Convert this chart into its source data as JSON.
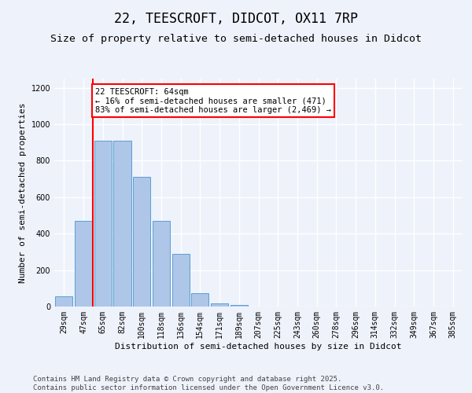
{
  "title": "22, TEESCROFT, DIDCOT, OX11 7RP",
  "subtitle": "Size of property relative to semi-detached houses in Didcot",
  "xlabel": "Distribution of semi-detached houses by size in Didcot",
  "ylabel": "Number of semi-detached properties",
  "bin_labels": [
    "29sqm",
    "47sqm",
    "65sqm",
    "82sqm",
    "100sqm",
    "118sqm",
    "136sqm",
    "154sqm",
    "171sqm",
    "189sqm",
    "207sqm",
    "225sqm",
    "243sqm",
    "260sqm",
    "278sqm",
    "296sqm",
    "314sqm",
    "332sqm",
    "349sqm",
    "367sqm",
    "385sqm"
  ],
  "bar_values": [
    57,
    471,
    910,
    910,
    710,
    471,
    290,
    75,
    17,
    8,
    0,
    0,
    0,
    0,
    0,
    0,
    0,
    0,
    0,
    0,
    0
  ],
  "bar_color": "#aec6e8",
  "bar_edge_color": "#5a9fd4",
  "highlight_line_color": "red",
  "annotation_text": "22 TEESCROFT: 64sqm\n← 16% of semi-detached houses are smaller (471)\n83% of semi-detached houses are larger (2,469) →",
  "annotation_box_color": "white",
  "annotation_box_edge_color": "red",
  "ylim": [
    0,
    1250
  ],
  "yticks": [
    0,
    200,
    400,
    600,
    800,
    1000,
    1200
  ],
  "footer_text": "Contains HM Land Registry data © Crown copyright and database right 2025.\nContains public sector information licensed under the Open Government Licence v3.0.",
  "bg_color": "#eef2fb",
  "plot_bg_color": "#eef2fb",
  "grid_color": "#ffffff",
  "title_fontsize": 12,
  "subtitle_fontsize": 9.5,
  "axis_label_fontsize": 8,
  "tick_fontsize": 7,
  "footer_fontsize": 6.5,
  "annotation_fontsize": 7.5
}
